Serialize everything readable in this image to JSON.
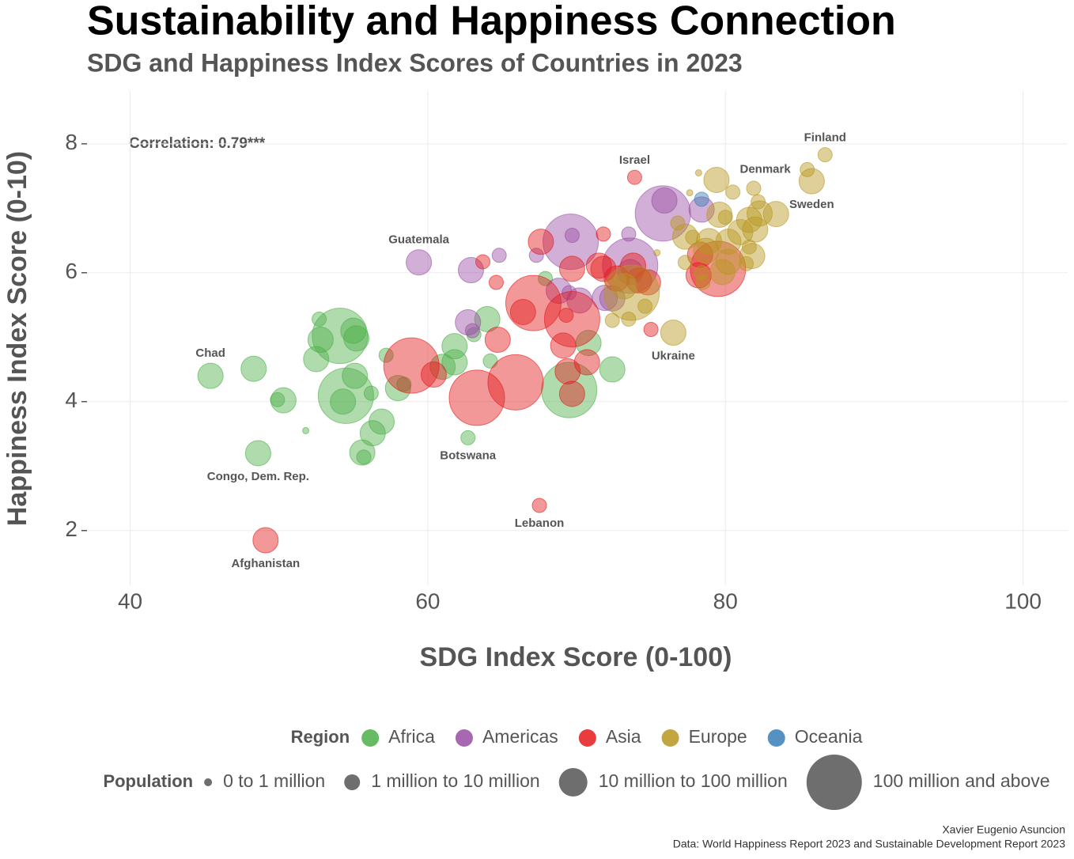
{
  "chart_data": {
    "type": "scatter",
    "title": "Sustainability and Happiness Connection",
    "subtitle": "SDG and Happiness Index Scores of Countries in 2023",
    "x_label": "SDG Index Score (0-100)",
    "y_label": "Happiness Index Score (0-10)",
    "annotation": "Correlation: 0.79***",
    "caption": [
      "Xavier Eugenio Asuncion",
      "Data: World Happiness Report 2023 and Sustainable Development Report 2023"
    ],
    "xlim": [
      37.1,
      103
    ],
    "ylim": [
      1.15,
      8.82
    ],
    "xticks": [
      40,
      60,
      80,
      100
    ],
    "yticks": [
      2,
      4,
      6,
      8
    ],
    "grid": true,
    "legend_title": "Region",
    "size_title": "Population",
    "size_legend": [
      "0 to 1 million",
      "1 million to 10 million",
      "10 million to 100 million",
      "100 million and above"
    ],
    "size_breaks": [
      1,
      10,
      100
    ],
    "series": [
      {
        "name": "Africa",
        "color": "#4daf4a",
        "x": [
          45.4,
          48.3,
          48.6,
          50.3,
          49.9,
          51.8,
          52.7,
          52.5,
          52.8,
          54.1,
          54.5,
          54.3,
          55.0,
          55.1,
          55.2,
          55.6,
          55.7,
          56.2,
          56.3,
          56.9,
          57.2,
          58.0,
          58.4,
          61.0,
          61.8,
          61.8,
          62.7,
          63.1,
          64.0,
          64.2,
          67.9,
          69.5,
          70.8,
          72.4
        ],
        "values": [
          4.4,
          4.51,
          3.2,
          4.02,
          4.03,
          3.55,
          5.28,
          4.66,
          4.96,
          5.02,
          4.09,
          4.0,
          5.1,
          4.4,
          4.98,
          3.21,
          3.14,
          4.13,
          3.51,
          3.69,
          4.72,
          4.21,
          4.27,
          4.54,
          4.86,
          4.61,
          3.44,
          5.04,
          5.28,
          4.63,
          5.91,
          4.18,
          4.91,
          4.5
        ],
        "population": [
          17,
          20,
          95,
          14,
          5,
          0.6,
          2.5,
          22,
          30,
          120,
          210,
          25,
          40,
          30,
          20,
          20,
          5,
          3,
          18,
          25,
          3,
          15,
          2,
          40,
          17,
          30,
          2.6,
          1.3,
          37,
          2,
          2.1,
          110,
          17,
          12
        ],
        "labels": [
          "Chad",
          null,
          "Congo, Dem. Rep.",
          null,
          null,
          null,
          null,
          null,
          null,
          null,
          null,
          null,
          null,
          null,
          null,
          null,
          null,
          null,
          null,
          null,
          null,
          null,
          null,
          null,
          null,
          null,
          "Botswana",
          null,
          null,
          null,
          null,
          null,
          null,
          null
        ]
      },
      {
        "name": "Americas",
        "color": "#984ea3",
        "x": [
          59.4,
          62.9,
          62.7,
          63.0,
          64.8,
          67.3,
          69.7,
          69.6,
          68.8,
          70.2,
          69.5,
          71.9,
          72.4,
          73.5,
          73.6,
          73.6,
          75.8,
          75.9,
          78.4
        ],
        "values": [
          6.16,
          6.04,
          5.23,
          5.1,
          6.27,
          6.27,
          6.58,
          6.48,
          5.72,
          5.57,
          5.69,
          5.61,
          5.6,
          6.6,
          6.11,
          6.01,
          6.92,
          7.12,
          6.98
        ],
        "population": [
          17,
          12,
          11,
          6,
          3,
          3.4,
          5,
          210,
          11,
          18,
          7,
          30,
          10,
          3.4,
          130,
          50,
          335,
          38,
          12
        ],
        "labels": [
          "Guatemala",
          null,
          null,
          null,
          null,
          null,
          null,
          null,
          null,
          null,
          null,
          null,
          null,
          null,
          null,
          null,
          null,
          null,
          null
        ]
      },
      {
        "name": "Asia",
        "color": "#e41a1c",
        "x": [
          49.1,
          58.9,
          60.4,
          63.3,
          63.7,
          64.6,
          64.7,
          65.9,
          66.4,
          67.1,
          67.6,
          67.5,
          69.1,
          69.3,
          69.4,
          69.7,
          69.7,
          69.7,
          70.7,
          71.5,
          71.8,
          71.8,
          72.7,
          73.9,
          73.8,
          74.2,
          74.8,
          75.0,
          79.5,
          78.2,
          78.3
        ],
        "values": [
          1.85,
          4.56,
          4.42,
          4.06,
          6.17,
          5.85,
          4.96,
          4.3,
          5.39,
          5.53,
          6.48,
          2.39,
          4.87,
          5.34,
          4.47,
          4.12,
          5.28,
          6.06,
          4.61,
          6.11,
          6.6,
          6.06,
          5.91,
          7.48,
          6.11,
          5.88,
          5.85,
          5.12,
          6.06,
          5.96,
          6.28
        ],
        "population": [
          40,
          170,
          30,
          230,
          4,
          5,
          30,
          1400,
          30,
          270,
          30,
          5.5,
          30,
          5,
          20,
          35,
          115,
          35,
          35,
          34,
          3,
          20,
          99,
          9.5,
          19,
          85,
          30,
          3,
          125,
          51,
          24
        ],
        "labels": [
          "Afghanistan",
          null,
          null,
          null,
          null,
          null,
          null,
          null,
          null,
          null,
          null,
          "Lebanon",
          null,
          null,
          null,
          null,
          null,
          null,
          null,
          null,
          null,
          null,
          null,
          "Israel",
          null,
          null,
          null,
          null,
          null,
          null,
          null
        ]
      },
      {
        "name": "Europe",
        "color": "#b8961f",
        "x": [
          76.5,
          73.7,
          73.2,
          73.5,
          72.4,
          74.6,
          75.4,
          76.8,
          77.3,
          77.8,
          77.3,
          77.6,
          78.2,
          78.4,
          78.5,
          78.7,
          78.9,
          79.4,
          79.6,
          80.0,
          79.8,
          80.2,
          80.5,
          80.2,
          81.0,
          81.4,
          81.6,
          81.6,
          81.8,
          81.9,
          82.0,
          82.2,
          82.3,
          83.4,
          85.8,
          85.5,
          86.7
        ],
        "values": [
          5.07,
          5.69,
          5.79,
          5.28,
          5.26,
          5.48,
          6.31,
          6.77,
          6.56,
          6.55,
          6.16,
          7.24,
          7.55,
          6.0,
          5.85,
          6.34,
          6.49,
          7.44,
          6.9,
          6.86,
          6.01,
          6.17,
          7.25,
          6.48,
          6.63,
          6.14,
          6.4,
          6.82,
          6.26,
          7.31,
          6.67,
          7.1,
          6.92,
          6.91,
          7.42,
          7.6,
          7.83
        ],
        "population": [
          38,
          145,
          40,
          3,
          2.8,
          6,
          0.6,
          6,
          38,
          4,
          4,
          0.5,
          0.6,
          2,
          2,
          60,
          10,
          17.5,
          67,
          4,
          47,
          10,
          9,
          68,
          10,
          5,
          3,
          84,
          38,
          9,
          10.5,
          5,
          11,
          10,
          10.4,
          5.9,
          5.5
        ],
        "labels": [
          "Ukraine",
          null,
          null,
          null,
          null,
          null,
          null,
          null,
          null,
          null,
          null,
          null,
          null,
          null,
          null,
          null,
          null,
          null,
          null,
          null,
          null,
          null,
          null,
          null,
          null,
          null,
          null,
          null,
          null,
          null,
          null,
          null,
          null,
          null,
          "Sweden",
          "Denmark",
          "Finland"
        ]
      },
      {
        "name": "Oceania",
        "color": "#377eb8",
        "x": [
          78.4
        ],
        "values": [
          7.14
        ],
        "population": [
          5
        ],
        "labels": [
          null
        ]
      }
    ]
  }
}
